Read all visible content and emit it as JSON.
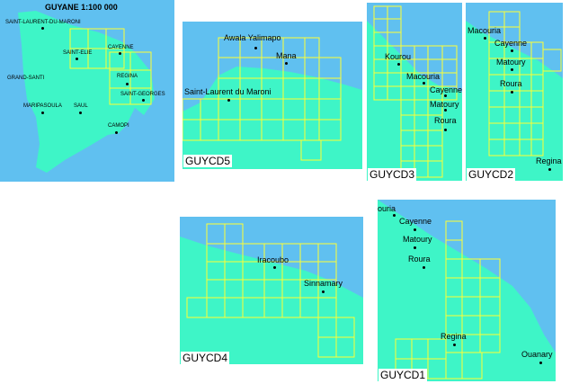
{
  "colors": {
    "sea": "#60c0f0",
    "land": "#3ef5c7",
    "grid": "#ffff33",
    "text": "#000000"
  },
  "overview": {
    "title": "GUYANE 1:100 000",
    "towns": [
      "SAINT-LAURENT-DU-MARONI",
      "SAINT-ELIE",
      "CAYENNE",
      "GRAND-SANTI",
      "REGINA",
      "SAINT-GEORGES",
      "MARIPASOULA",
      "SAUL",
      "CAMOPI"
    ]
  },
  "panels": [
    {
      "id": "cd5",
      "caption": "GUYCD5",
      "towns": [
        "Awala Yalimapo",
        "Mana",
        "Saint-Laurent du Maroni"
      ]
    },
    {
      "id": "cd3",
      "caption": "GUYCD3",
      "towns": [
        "Kourou",
        "Macouria",
        "Cayenne",
        "Matoury",
        "Roura"
      ]
    },
    {
      "id": "cd2",
      "caption": "GUYCD2",
      "towns": [
        "Macouria",
        "Cayenne",
        "Matoury",
        "Roura",
        "Regina"
      ]
    },
    {
      "id": "cd4",
      "caption": "GUYCD4",
      "towns": [
        "Iracoubo",
        "Sinnamary"
      ]
    },
    {
      "id": "cd1",
      "caption": "GUYCD1",
      "towns": [
        "ouria",
        "Cayenne",
        "Matoury",
        "Roura",
        "Regina",
        "Ouanary"
      ]
    }
  ]
}
